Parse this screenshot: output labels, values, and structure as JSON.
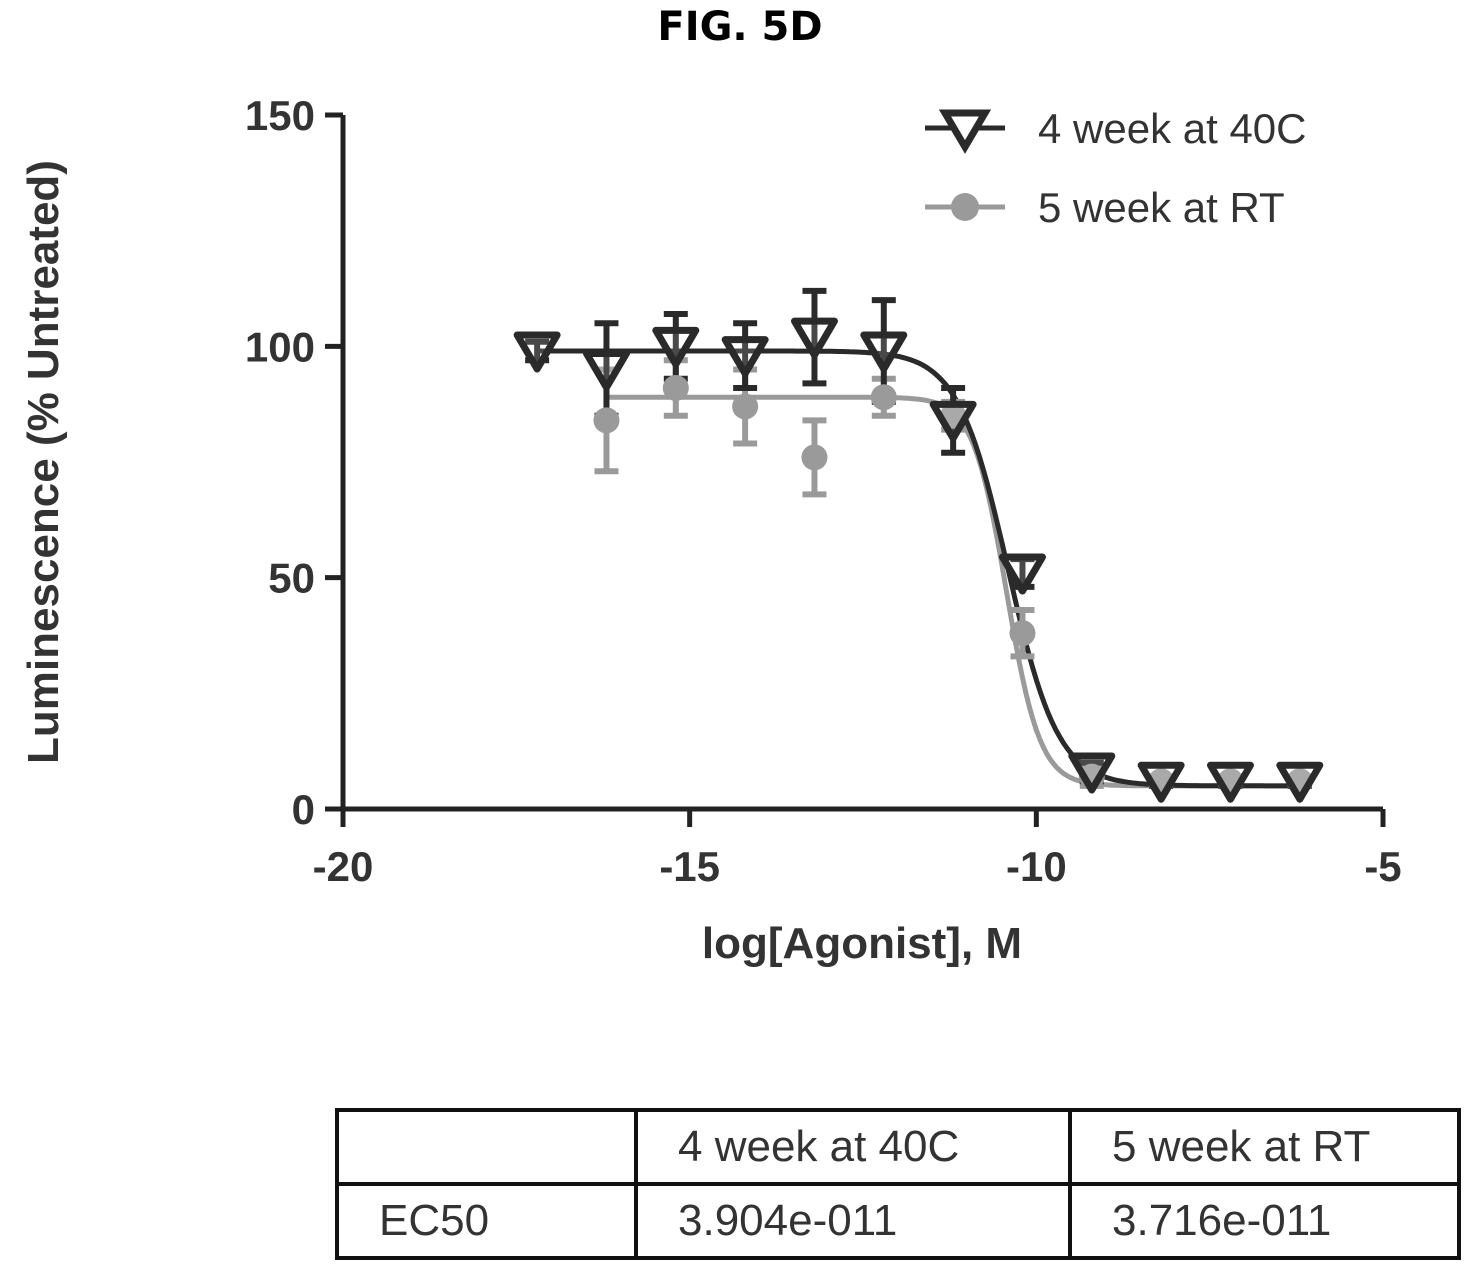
{
  "figure": {
    "label": "FIG. 5D"
  },
  "chart_data": {
    "type": "scatter",
    "xlabel": "log[Agonist], M",
    "ylabel": "Luminescence (% Untreated)",
    "xlim": [
      -20,
      -5
    ],
    "ylim": [
      0,
      150
    ],
    "xticks": [
      "-20",
      "-15",
      "-10",
      "-5"
    ],
    "yticks": [
      "0",
      "50",
      "100",
      "150"
    ],
    "legend_position": "top-right",
    "grid": false,
    "series": [
      {
        "name": "4 week at 40C",
        "marker": "down-triangle",
        "color": "#2a2a2a",
        "x": [
          -17.2,
          -16.2,
          -15.2,
          -14.2,
          -13.2,
          -12.2,
          -11.2,
          -10.2,
          -9.2,
          -8.2,
          -7.2,
          -6.2
        ],
        "y": [
          99,
          95,
          100,
          98,
          102,
          99,
          84,
          51,
          8,
          6,
          6,
          6
        ],
        "err": [
          2,
          10,
          7,
          7,
          10,
          11,
          7,
          3,
          2,
          1,
          1,
          1
        ],
        "fit": {
          "top": 99,
          "bottom": 5,
          "logEC50": -10.41,
          "hill": 1.2
        }
      },
      {
        "name": "5 week at RT",
        "marker": "circle",
        "color": "#9a9a9a",
        "x": [
          -16.2,
          -15.2,
          -14.2,
          -13.2,
          -12.2,
          -11.2,
          -10.2,
          -9.2,
          -8.2,
          -7.2,
          -6.2
        ],
        "y": [
          84,
          91,
          87,
          76,
          89,
          85,
          38,
          7,
          6,
          6,
          6
        ],
        "err": [
          11,
          6,
          8,
          8,
          4,
          3,
          5,
          2,
          1,
          1,
          1
        ],
        "fit": {
          "top": 89,
          "bottom": 5,
          "logEC50": -10.43,
          "hill": 1.8
        }
      }
    ]
  },
  "table": {
    "headers": [
      "",
      "4 week at 40C",
      "5 week at RT"
    ],
    "rows": [
      [
        "EC50",
        "3.904e-011",
        "3.716e-011"
      ]
    ]
  }
}
